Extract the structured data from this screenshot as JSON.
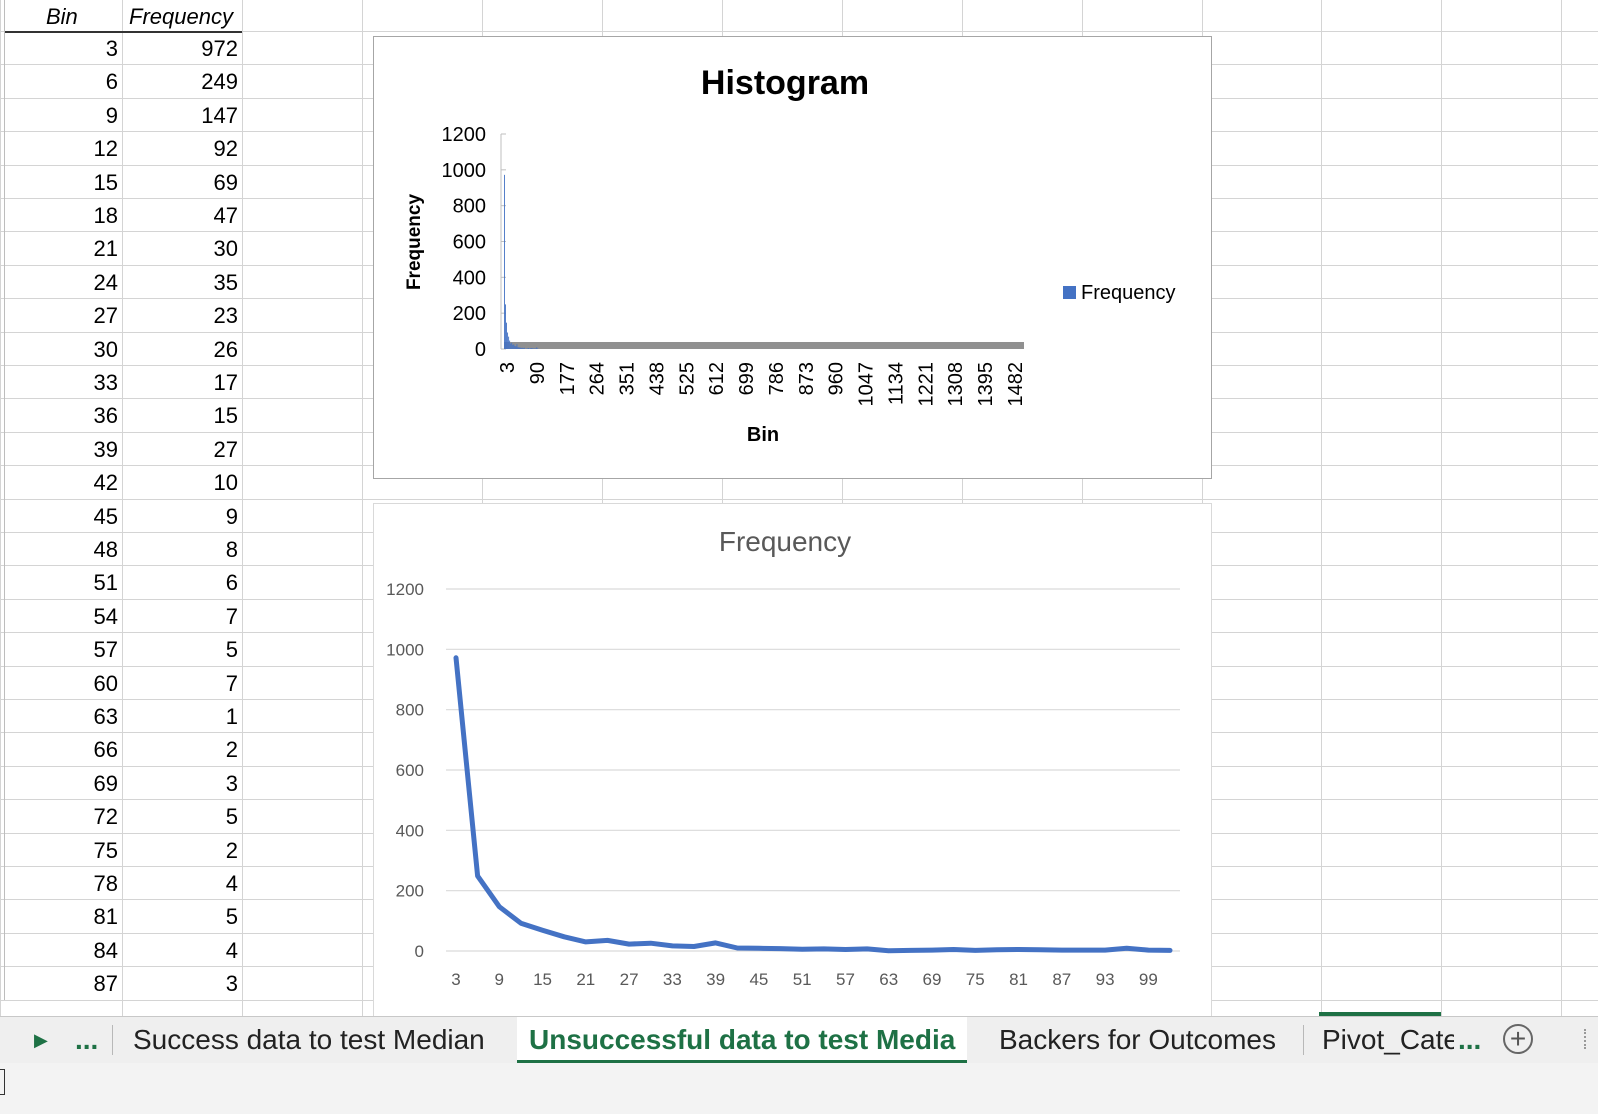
{
  "sheet": {
    "headers": {
      "bin": "Bin",
      "frequency": "Frequency"
    },
    "rows": [
      {
        "bin": "3",
        "freq": "972"
      },
      {
        "bin": "6",
        "freq": "249"
      },
      {
        "bin": "9",
        "freq": "147"
      },
      {
        "bin": "12",
        "freq": "92"
      },
      {
        "bin": "15",
        "freq": "69"
      },
      {
        "bin": "18",
        "freq": "47"
      },
      {
        "bin": "21",
        "freq": "30"
      },
      {
        "bin": "24",
        "freq": "35"
      },
      {
        "bin": "27",
        "freq": "23"
      },
      {
        "bin": "30",
        "freq": "26"
      },
      {
        "bin": "33",
        "freq": "17"
      },
      {
        "bin": "36",
        "freq": "15"
      },
      {
        "bin": "39",
        "freq": "27"
      },
      {
        "bin": "42",
        "freq": "10"
      },
      {
        "bin": "45",
        "freq": "9"
      },
      {
        "bin": "48",
        "freq": "8"
      },
      {
        "bin": "51",
        "freq": "6"
      },
      {
        "bin": "54",
        "freq": "7"
      },
      {
        "bin": "57",
        "freq": "5"
      },
      {
        "bin": "60",
        "freq": "7"
      },
      {
        "bin": "63",
        "freq": "1"
      },
      {
        "bin": "66",
        "freq": "2"
      },
      {
        "bin": "69",
        "freq": "3"
      },
      {
        "bin": "72",
        "freq": "5"
      },
      {
        "bin": "75",
        "freq": "2"
      },
      {
        "bin": "78",
        "freq": "4"
      },
      {
        "bin": "81",
        "freq": "5"
      },
      {
        "bin": "84",
        "freq": "4"
      },
      {
        "bin": "87",
        "freq": "3"
      }
    ]
  },
  "tabs": {
    "nav_arrow": "▶",
    "more": "...",
    "items": [
      {
        "label": "Success data to test Median"
      },
      {
        "label": "Unsuccessful data to test Media"
      },
      {
        "label": "Backers for Outcomes"
      },
      {
        "label": "Pivot_Cate"
      }
    ],
    "more_right": "...",
    "add_icon": "plus-circle-icon"
  },
  "colors": {
    "series": "#4472c4",
    "active_tab": "#1e7145",
    "bar_gray": "#909090"
  },
  "chart_data": [
    {
      "type": "bar",
      "title": "Histogram",
      "xlabel": "Bin",
      "ylabel": "Frequency",
      "ylim": [
        0,
        1200
      ],
      "yticks": [
        0,
        200,
        400,
        600,
        800,
        1000,
        1200
      ],
      "x_tick_labels": [
        "3",
        "90",
        "177",
        "264",
        "351",
        "438",
        "525",
        "612",
        "699",
        "786",
        "873",
        "960",
        "1047",
        "1134",
        "1221",
        "1308",
        "1395",
        "1482"
      ],
      "x_range": [
        3,
        1500
      ],
      "legend": {
        "position": "right",
        "entries": [
          "Frequency"
        ]
      },
      "series": [
        {
          "name": "Frequency",
          "x": [
            3,
            6,
            9,
            12,
            15,
            18,
            21,
            24,
            27,
            30,
            33,
            36,
            39,
            42,
            45,
            48,
            51,
            54,
            57,
            60,
            63,
            66,
            69,
            72,
            75,
            78,
            81,
            84,
            87,
            90,
            93,
            96,
            99
          ],
          "values": [
            972,
            249,
            147,
            92,
            69,
            47,
            30,
            35,
            23,
            26,
            17,
            15,
            27,
            10,
            9,
            8,
            6,
            7,
            5,
            7,
            1,
            2,
            3,
            5,
            2,
            4,
            5,
            4,
            3,
            3,
            3,
            9,
            3
          ]
        }
      ],
      "grid": false
    },
    {
      "type": "line",
      "title": "Frequency",
      "xlabel": "",
      "ylabel": "",
      "ylim": [
        0,
        1200
      ],
      "yticks": [
        0,
        200,
        400,
        600,
        800,
        1000,
        1200
      ],
      "x_tick_labels": [
        "3",
        "9",
        "15",
        "21",
        "27",
        "33",
        "39",
        "45",
        "51",
        "57",
        "63",
        "69",
        "75",
        "81",
        "87",
        "93",
        "99"
      ],
      "x": [
        3,
        6,
        9,
        12,
        15,
        18,
        21,
        24,
        27,
        30,
        33,
        36,
        39,
        42,
        45,
        48,
        51,
        54,
        57,
        60,
        63,
        66,
        69,
        72,
        75,
        78,
        81,
        84,
        87,
        90,
        93,
        96,
        99,
        102
      ],
      "series": [
        {
          "values": [
            972,
            249,
            147,
            92,
            69,
            47,
            30,
            35,
            23,
            26,
            17,
            15,
            27,
            10,
            9,
            8,
            6,
            7,
            5,
            7,
            1,
            2,
            3,
            5,
            2,
            4,
            5,
            4,
            3,
            3,
            3,
            9,
            3,
            2
          ]
        }
      ],
      "grid": true
    }
  ]
}
